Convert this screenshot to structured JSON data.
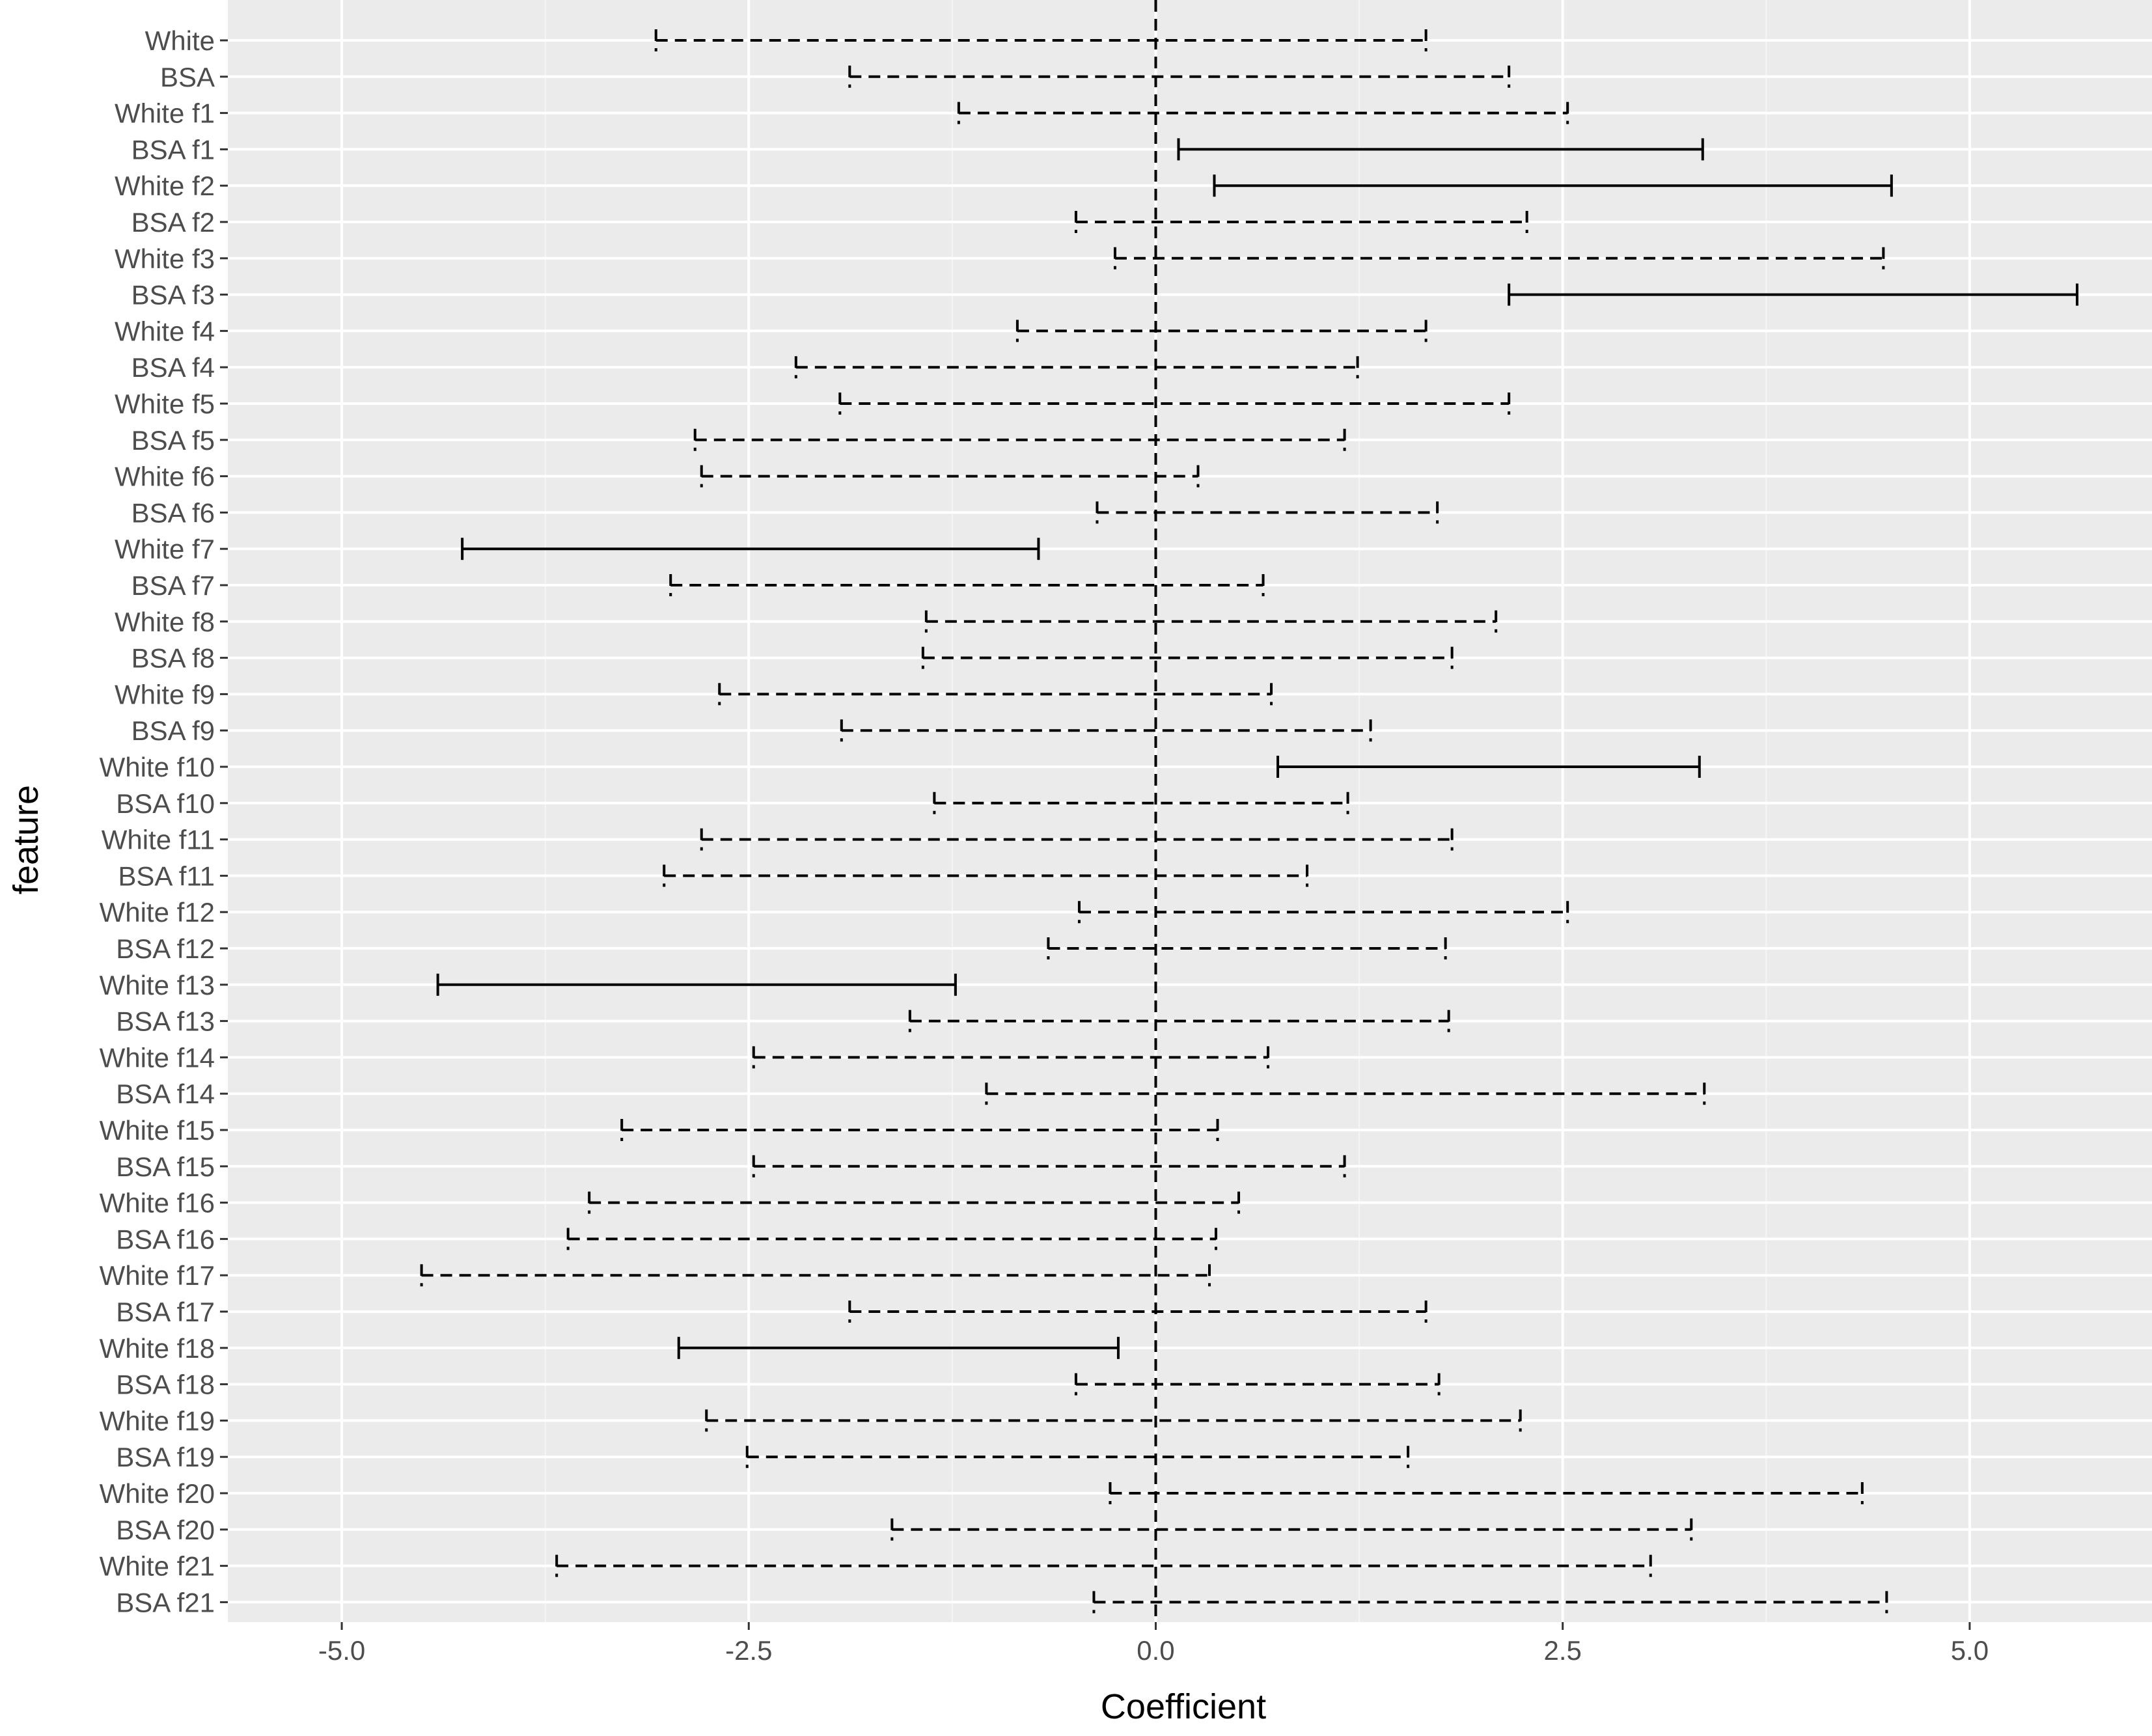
{
  "chart_data": {
    "type": "errorbar",
    "xlabel": "Coefficient",
    "ylabel": "feature",
    "xlim": [
      -5.0,
      6.0
    ],
    "x_ticks": [
      -5.0,
      -2.5,
      0.0,
      2.5,
      5.0
    ],
    "x_tick_labels": [
      "-5.0",
      "-2.5",
      "0.0",
      "2.5",
      "5.0"
    ],
    "reference_line": {
      "x": 0.0,
      "style": "dashed"
    },
    "grid": true,
    "legend": "none",
    "style_meaning": "solid = interval excludes 0; dashed = interval includes 0",
    "colors": {
      "panel_bg": "#ebebeb",
      "grid": "#ffffff",
      "bars": "#000000"
    },
    "features": [
      {
        "label": "White",
        "low": -3.07,
        "high": 1.66
      },
      {
        "label": "BSA",
        "low": -1.88,
        "high": 2.17
      },
      {
        "label": "White f1",
        "low": -1.21,
        "high": 2.53
      },
      {
        "label": "BSA f1",
        "low": 0.14,
        "high": 3.36
      },
      {
        "label": "White f2",
        "low": 0.36,
        "high": 4.52
      },
      {
        "label": "BSA f2",
        "low": -0.49,
        "high": 2.28
      },
      {
        "label": "White f3",
        "low": -0.25,
        "high": 4.47
      },
      {
        "label": "BSA f3",
        "low": 2.17,
        "high": 5.66
      },
      {
        "label": "White f4",
        "low": -0.85,
        "high": 1.66
      },
      {
        "label": "BSA f4",
        "low": -2.21,
        "high": 1.24
      },
      {
        "label": "White f5",
        "low": -1.94,
        "high": 2.17
      },
      {
        "label": "BSA f5",
        "low": -2.83,
        "high": 1.16
      },
      {
        "label": "White f6",
        "low": -2.79,
        "high": 0.26
      },
      {
        "label": "BSA f6",
        "low": -0.36,
        "high": 1.73
      },
      {
        "label": "White f7",
        "low": -4.26,
        "high": -0.72
      },
      {
        "label": "BSA f7",
        "low": -2.98,
        "high": 0.66
      },
      {
        "label": "White f8",
        "low": -1.41,
        "high": 2.09
      },
      {
        "label": "BSA f8",
        "low": -1.43,
        "high": 1.82
      },
      {
        "label": "White f9",
        "low": -2.68,
        "high": 0.71
      },
      {
        "label": "BSA f9",
        "low": -1.93,
        "high": 1.32
      },
      {
        "label": "White f10",
        "low": 0.75,
        "high": 3.34
      },
      {
        "label": "BSA f10",
        "low": -1.36,
        "high": 1.18
      },
      {
        "label": "White f11",
        "low": -2.79,
        "high": 1.82
      },
      {
        "label": "BSA f11",
        "low": -3.02,
        "high": 0.93
      },
      {
        "label": "White f12",
        "low": -0.47,
        "high": 2.53
      },
      {
        "label": "BSA f12",
        "low": -0.66,
        "high": 1.78
      },
      {
        "label": "White f13",
        "low": -4.41,
        "high": -1.23
      },
      {
        "label": "BSA f13",
        "low": -1.51,
        "high": 1.8
      },
      {
        "label": "White f14",
        "low": -2.47,
        "high": 0.69
      },
      {
        "label": "BSA f14",
        "low": -1.04,
        "high": 3.37
      },
      {
        "label": "White f15",
        "low": -3.28,
        "high": 0.38
      },
      {
        "label": "BSA f15",
        "low": -2.47,
        "high": 1.16
      },
      {
        "label": "White f16",
        "low": -3.48,
        "high": 0.51
      },
      {
        "label": "BSA f16",
        "low": -3.61,
        "high": 0.37
      },
      {
        "label": "White f17",
        "low": -4.51,
        "high": 0.33
      },
      {
        "label": "BSA f17",
        "low": -1.88,
        "high": 1.66
      },
      {
        "label": "White f18",
        "low": -2.93,
        "high": -0.23
      },
      {
        "label": "BSA f18",
        "low": -0.49,
        "high": 1.74
      },
      {
        "label": "White f19",
        "low": -2.76,
        "high": 2.24
      },
      {
        "label": "BSA f19",
        "low": -2.51,
        "high": 1.55
      },
      {
        "label": "White f20",
        "low": -0.28,
        "high": 4.34
      },
      {
        "label": "BSA f20",
        "low": -1.62,
        "high": 3.29
      },
      {
        "label": "White f21",
        "low": -3.68,
        "high": 3.04
      },
      {
        "label": "BSA f21",
        "low": -0.38,
        "high": 4.49
      }
    ]
  }
}
